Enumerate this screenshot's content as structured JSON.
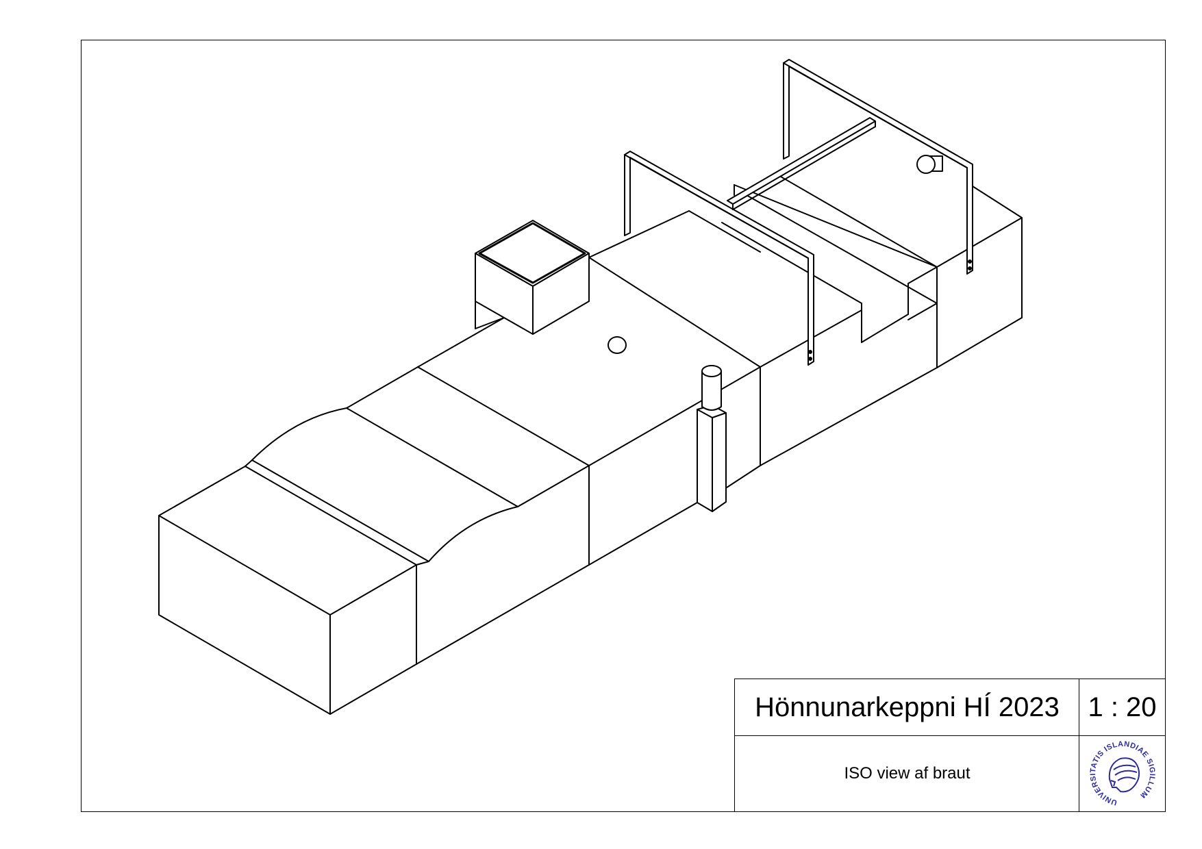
{
  "title_block": {
    "title": "Hönnunarkeppni HÍ 2023",
    "scale": "1 : 20",
    "description": "ISO view af braut"
  },
  "seal": {
    "text": "UNIVERSITATIS ISLANDIAE SIGILLUM",
    "color": "#2b2b9a"
  },
  "colors": {
    "line": "#000000",
    "background": "#ffffff"
  }
}
